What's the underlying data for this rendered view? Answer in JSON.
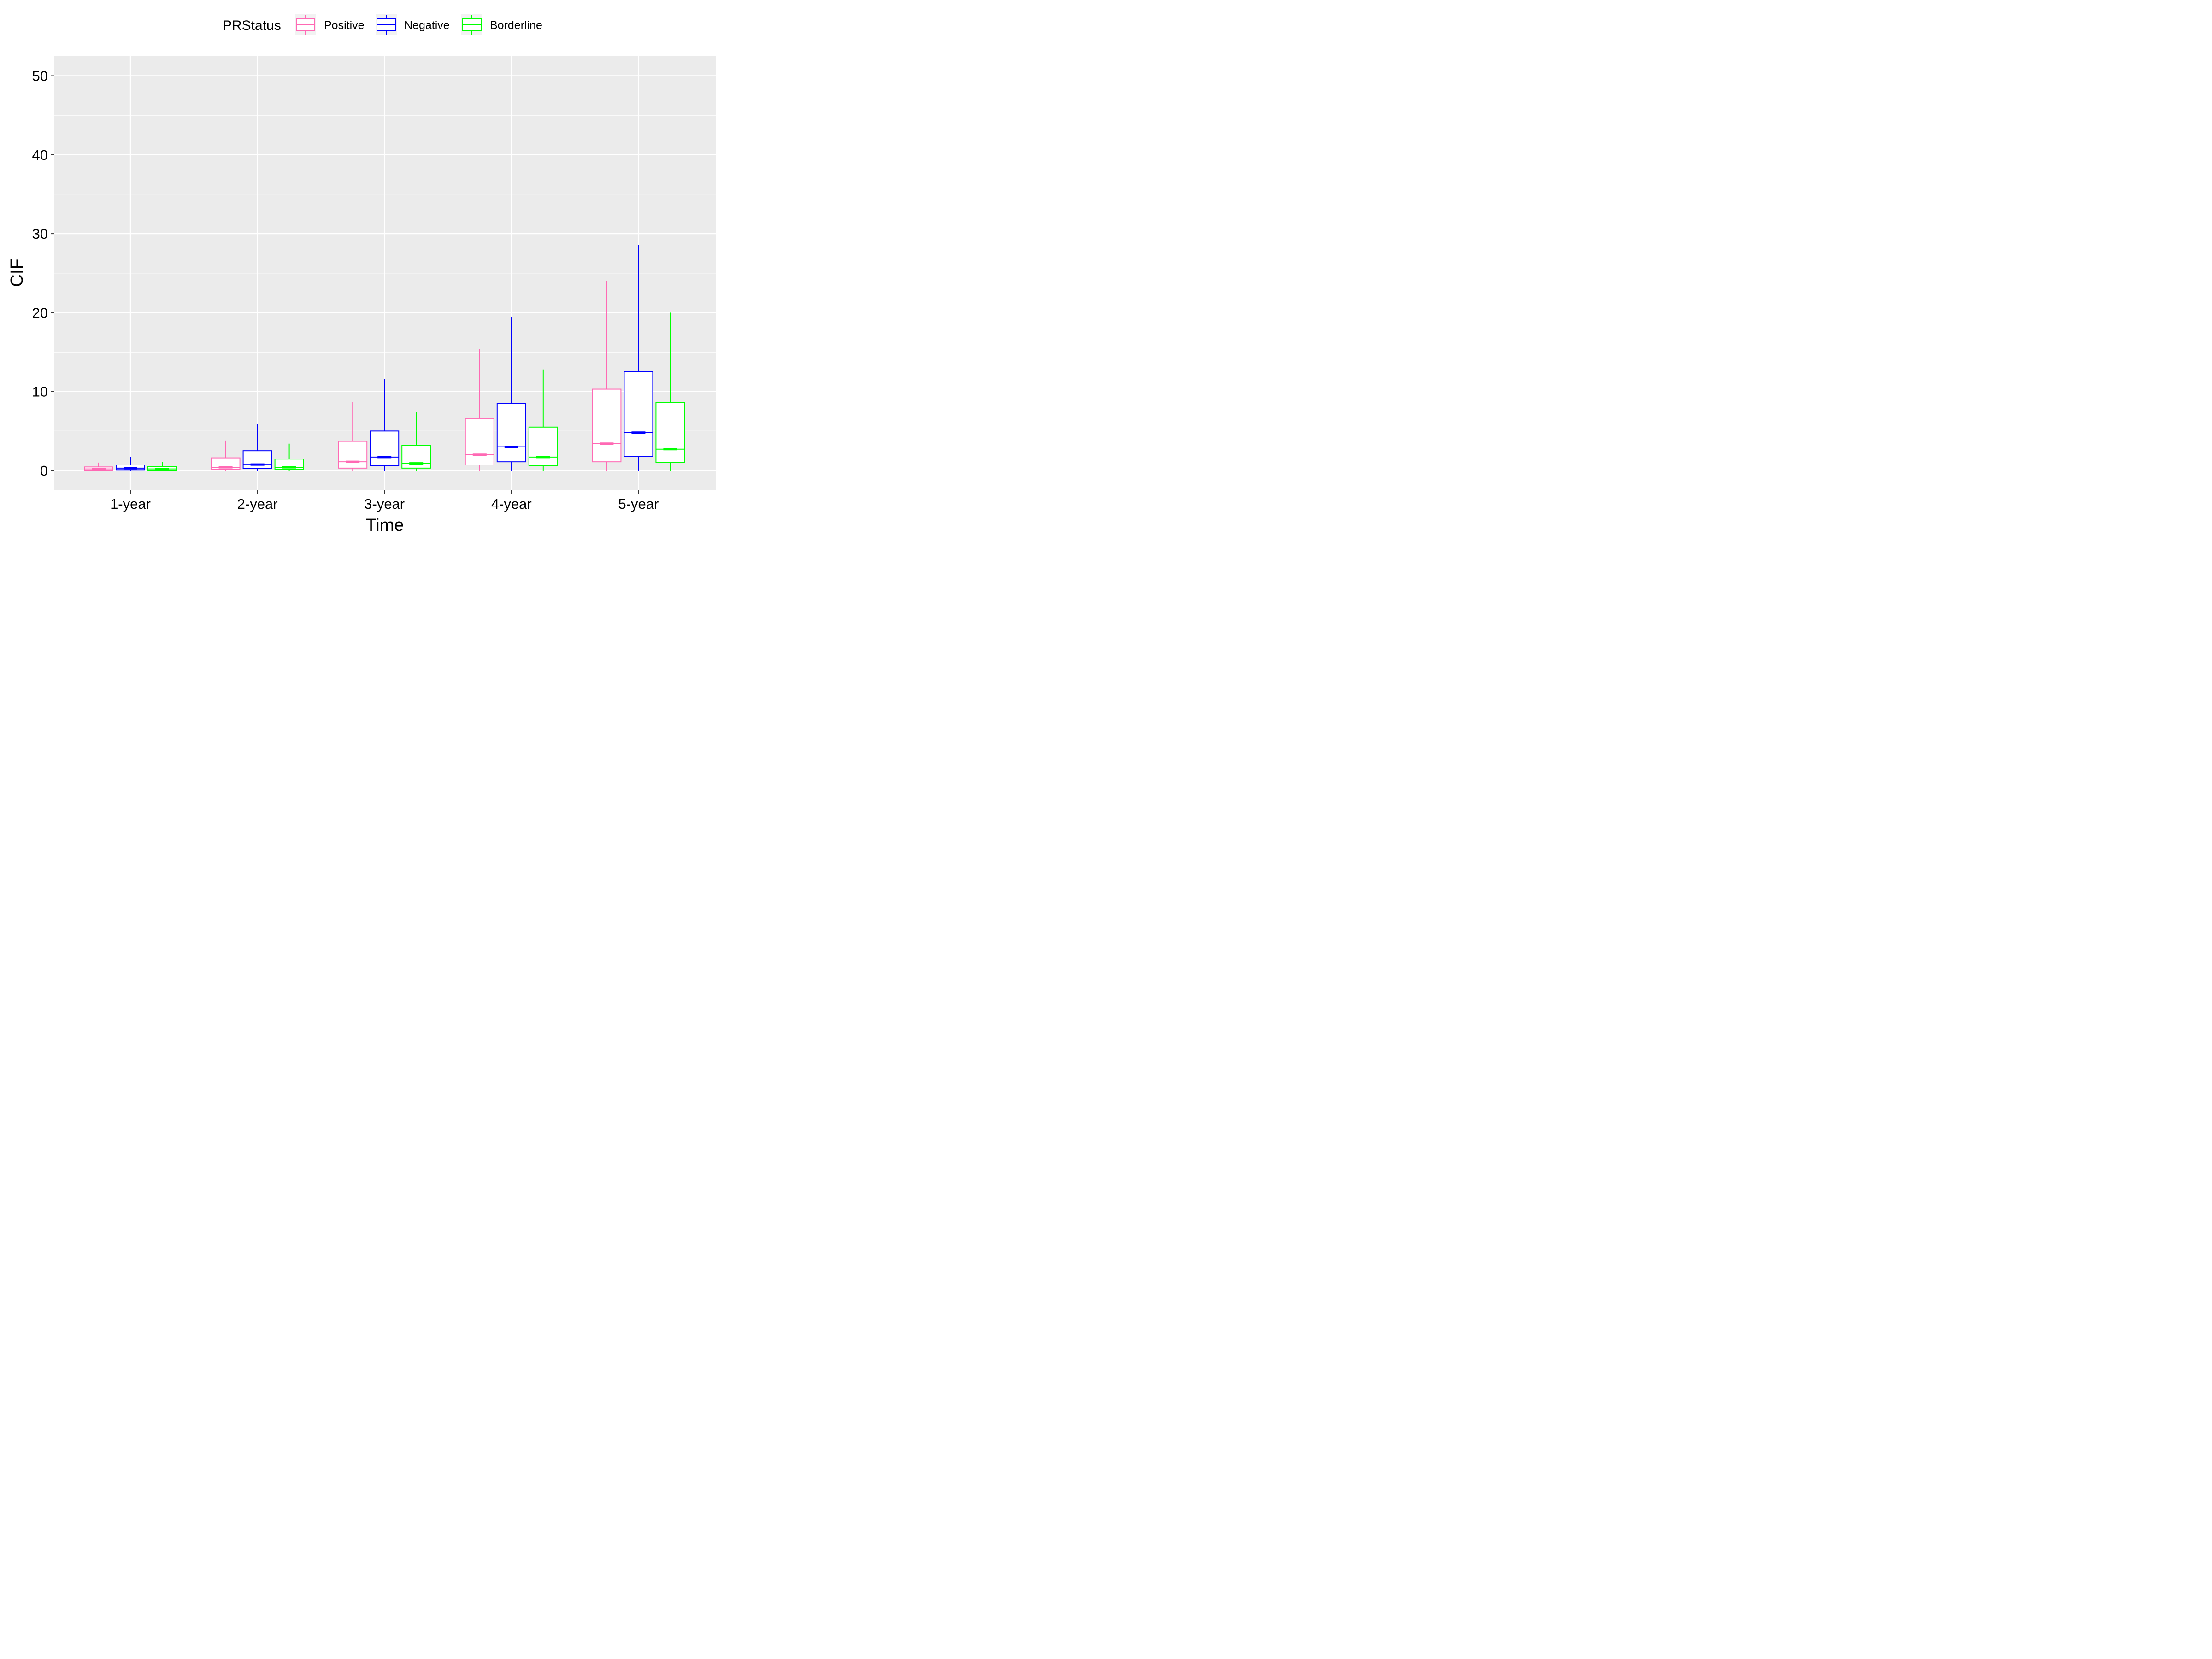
{
  "chart_data": {
    "type": "boxplot",
    "xlabel": "Time",
    "ylabel": "CIF",
    "categories": [
      "1-year",
      "2-year",
      "3-year",
      "4-year",
      "5-year"
    ],
    "ylim": [
      -2.5,
      52.5
    ],
    "yticks": [
      0,
      10,
      20,
      30,
      40,
      50
    ],
    "grid": true,
    "legend": {
      "title": "PRStatus",
      "position": "top"
    },
    "series": [
      {
        "name": "Positive",
        "color": "#ff69b4",
        "boxes": [
          {
            "min": 0.0,
            "q1": 0.05,
            "median": 0.2,
            "q3": 0.45,
            "max": 1.0
          },
          {
            "min": 0.0,
            "q1": 0.15,
            "median": 0.4,
            "q3": 1.6,
            "max": 3.8
          },
          {
            "min": 0.0,
            "q1": 0.3,
            "median": 1.1,
            "q3": 3.7,
            "max": 8.7
          },
          {
            "min": 0.0,
            "q1": 0.7,
            "median": 2.0,
            "q3": 6.6,
            "max": 15.4
          },
          {
            "min": 0.0,
            "q1": 1.1,
            "median": 3.4,
            "q3": 10.3,
            "max": 24.0
          }
        ]
      },
      {
        "name": "Negative",
        "color": "#0000ff",
        "boxes": [
          {
            "min": 0.0,
            "q1": 0.1,
            "median": 0.3,
            "q3": 0.7,
            "max": 1.7
          },
          {
            "min": 0.0,
            "q1": 0.25,
            "median": 0.75,
            "q3": 2.5,
            "max": 5.9
          },
          {
            "min": 0.0,
            "q1": 0.6,
            "median": 1.7,
            "q3": 5.0,
            "max": 11.6
          },
          {
            "min": 0.0,
            "q1": 1.1,
            "median": 3.0,
            "q3": 8.5,
            "max": 19.5
          },
          {
            "min": 0.0,
            "q1": 1.8,
            "median": 4.8,
            "q3": 12.5,
            "max": 28.6
          }
        ]
      },
      {
        "name": "Borderline",
        "color": "#00ff00",
        "boxes": [
          {
            "min": 0.0,
            "q1": 0.05,
            "median": 0.2,
            "q3": 0.5,
            "max": 1.1
          },
          {
            "min": 0.0,
            "q1": 0.15,
            "median": 0.4,
            "q3": 1.45,
            "max": 3.4
          },
          {
            "min": 0.0,
            "q1": 0.3,
            "median": 0.9,
            "q3": 3.2,
            "max": 7.4
          },
          {
            "min": 0.0,
            "q1": 0.6,
            "median": 1.7,
            "q3": 5.5,
            "max": 12.8
          },
          {
            "min": 0.0,
            "q1": 1.0,
            "median": 2.7,
            "q3": 8.6,
            "max": 20.0
          }
        ]
      }
    ]
  }
}
